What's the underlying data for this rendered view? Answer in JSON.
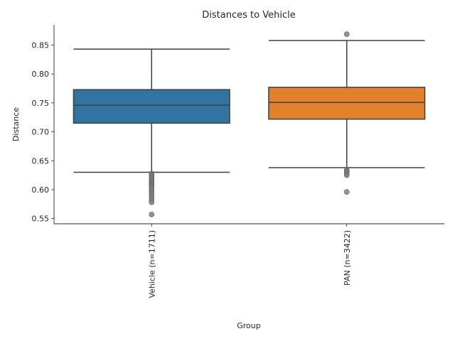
{
  "chart_data": {
    "type": "box",
    "title": "Distances to Vehicle",
    "xlabel": "Group",
    "ylabel": "Distance",
    "ylim": [
      0.541,
      0.885
    ],
    "yticks": [
      0.55,
      0.6,
      0.65,
      0.7,
      0.75,
      0.8,
      0.85
    ],
    "ytick_labels": [
      "0.55",
      "0.60",
      "0.65",
      "0.70",
      "0.75",
      "0.80",
      "0.85"
    ],
    "grid": false,
    "categories": [
      "Vehicle (n=1711)",
      "PAN (n=3422)"
    ],
    "boxes": [
      {
        "name": "Vehicle (n=1711)",
        "color": "#3274a1",
        "whislo": 0.63,
        "q1": 0.715,
        "median": 0.746,
        "q3": 0.773,
        "whishi": 0.843,
        "fliers": [
          0.628,
          0.626,
          0.624,
          0.621,
          0.619,
          0.616,
          0.613,
          0.61,
          0.608,
          0.606,
          0.604,
          0.6,
          0.597,
          0.594,
          0.59,
          0.586,
          0.582,
          0.578,
          0.557
        ]
      },
      {
        "name": "PAN (n=3422)",
        "color": "#e1812c",
        "whislo": 0.638,
        "q1": 0.722,
        "median": 0.751,
        "q3": 0.777,
        "whishi": 0.858,
        "fliers": [
          0.869,
          0.634,
          0.632,
          0.63,
          0.627,
          0.625,
          0.596
        ]
      }
    ]
  }
}
